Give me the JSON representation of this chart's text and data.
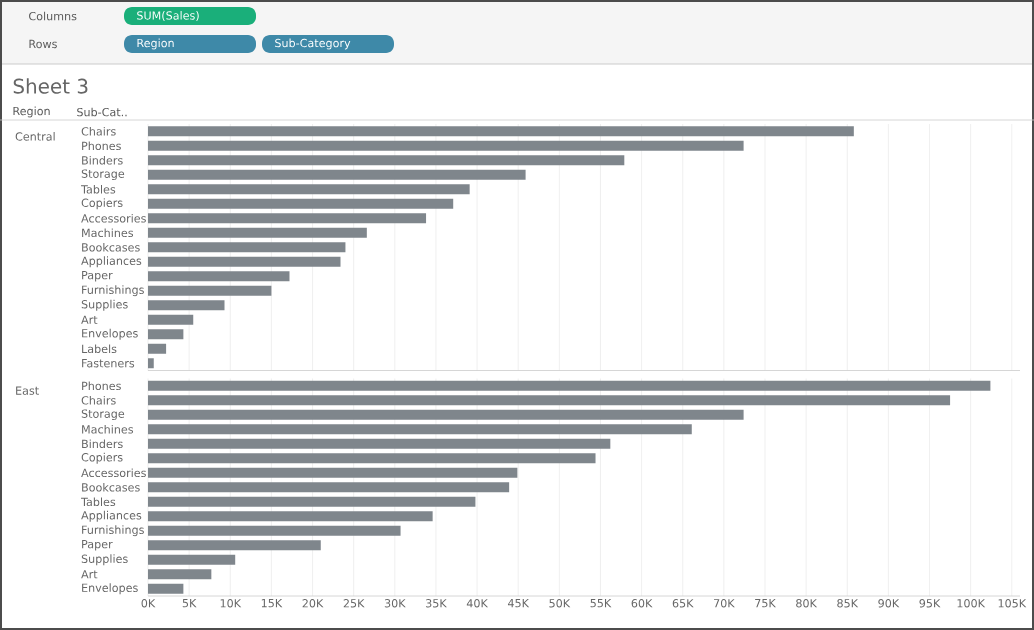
{
  "chart_data": [
    {
      "type": "bar",
      "orientation": "horizontal",
      "title": "Sheet 3",
      "ylabel": "Central",
      "annotations": [
        "Columns",
        "SUM(Sales)",
        "Rows",
        "Region",
        "Sub-Category",
        "Region",
        "Sub-Cat.."
      ],
      "categories": [
        "Chairs",
        "Phones",
        "Binders",
        "Storage",
        "Tables",
        "Copiers",
        "Accessories",
        "Machines",
        "Bookcases",
        "Appliances",
        "Paper",
        "Furnishings",
        "Supplies",
        "Art",
        "Envelopes",
        "Labels",
        "Fasteners"
      ],
      "values": [
        85800,
        72400,
        57900,
        45900,
        39100,
        37100,
        33800,
        26600,
        24000,
        23400,
        17200,
        15000,
        9300,
        5500,
        4300,
        2200,
        700
      ],
      "color": "#7f868c",
      "xlim": [
        0,
        106000
      ],
      "xticks": [
        {
          "value": 0,
          "label": null
        },
        {
          "value": 5000,
          "label": null
        },
        {
          "value": 10000,
          "label": null
        },
        {
          "value": 15000,
          "label": null
        },
        {
          "value": 20000,
          "label": null
        },
        {
          "value": 25000,
          "label": null
        },
        {
          "value": 30000,
          "label": null
        },
        {
          "value": 35000,
          "label": null
        },
        {
          "value": 40000,
          "label": null
        },
        {
          "value": 45000,
          "label": null
        },
        {
          "value": 50000,
          "label": null
        },
        {
          "value": 55000,
          "label": null
        },
        {
          "value": 60000,
          "label": null
        },
        {
          "value": 65000,
          "label": null
        },
        {
          "value": 70000,
          "label": null
        },
        {
          "value": 75000,
          "label": null
        },
        {
          "value": 80000,
          "label": null
        },
        {
          "value": 85000,
          "label": null
        },
        {
          "value": 90000,
          "label": null
        },
        {
          "value": 95000,
          "label": null
        },
        {
          "value": 100000,
          "label": null
        },
        {
          "value": 105000,
          "label": null
        }
      ],
      "grid": "x",
      "tick_labels": "y"
    },
    {
      "type": "bar",
      "orientation": "horizontal",
      "ylabel": "East",
      "categories": [
        "Phones",
        "Chairs",
        "Storage",
        "Machines",
        "Binders",
        "Copiers",
        "Accessories",
        "Bookcases",
        "Tables",
        "Appliances",
        "Furnishings",
        "Paper",
        "Supplies",
        "Art",
        "Envelopes"
      ],
      "values": [
        102400,
        97500,
        72400,
        66100,
        56200,
        54400,
        44900,
        43900,
        39800,
        34600,
        30700,
        21000,
        10600,
        7700,
        4300
      ],
      "color": "#7f868c",
      "xlim": [
        0,
        106000
      ],
      "xticks": [
        {
          "value": 0,
          "label": "0K"
        },
        {
          "value": 5000,
          "label": "5K"
        },
        {
          "value": 10000,
          "label": "10K"
        },
        {
          "value": 15000,
          "label": "15K"
        },
        {
          "value": 20000,
          "label": "20K"
        },
        {
          "value": 25000,
          "label": "25K"
        },
        {
          "value": 30000,
          "label": "30K"
        },
        {
          "value": 35000,
          "label": "35K"
        },
        {
          "value": 40000,
          "label": "40K"
        },
        {
          "value": 45000,
          "label": "45K"
        },
        {
          "value": 50000,
          "label": "50K"
        },
        {
          "value": 55000,
          "label": "55K"
        },
        {
          "value": 60000,
          "label": "60K"
        },
        {
          "value": 65000,
          "label": "65K"
        },
        {
          "value": 70000,
          "label": "70K"
        },
        {
          "value": 75000,
          "label": "75K"
        },
        {
          "value": 80000,
          "label": "80K"
        },
        {
          "value": 85000,
          "label": "85K"
        },
        {
          "value": 90000,
          "label": "90K"
        },
        {
          "value": 95000,
          "label": "95K"
        },
        {
          "value": 100000,
          "label": "100K"
        },
        {
          "value": 105000,
          "label": "105K"
        }
      ],
      "grid": "x"
    }
  ]
}
